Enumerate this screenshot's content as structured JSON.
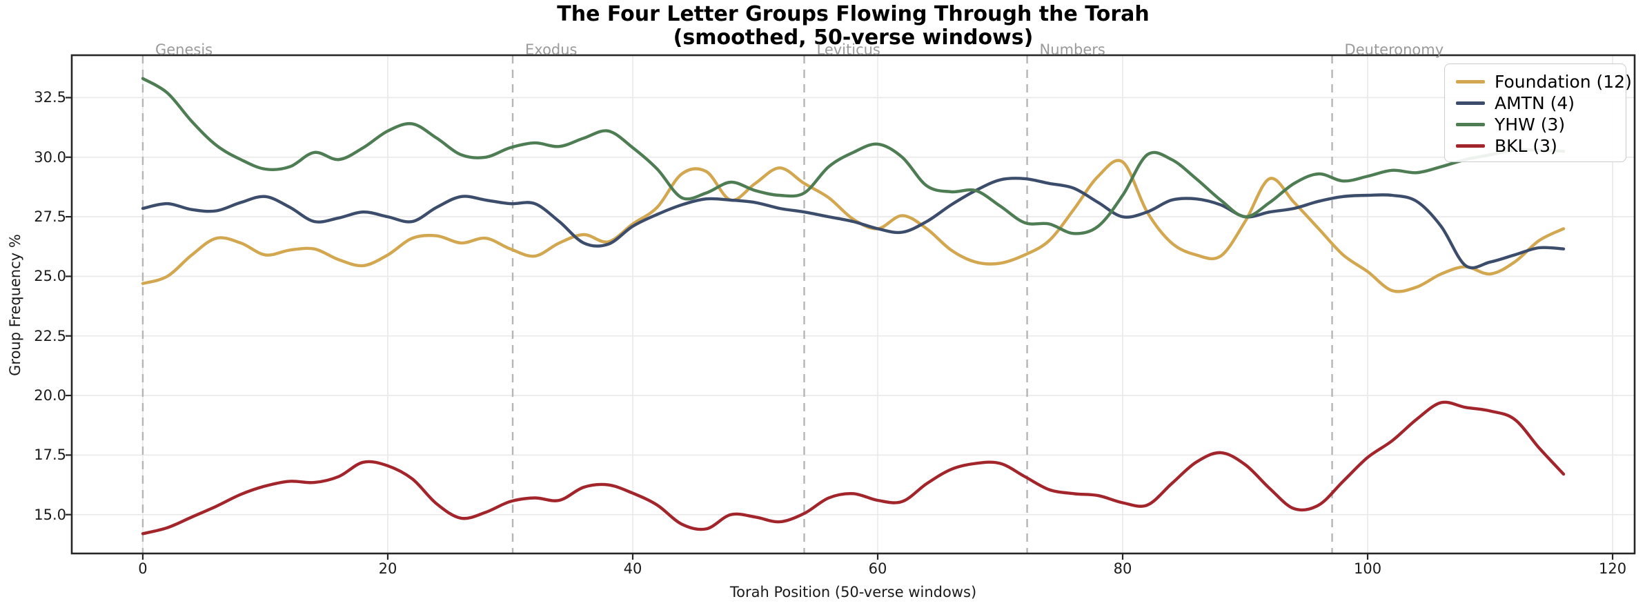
{
  "title": {
    "line1": "The Four Letter Groups Flowing Through the Torah",
    "line2": "(smoothed, 50-verse windows)"
  },
  "axes": {
    "x_label": "Torah Position (50-verse windows)",
    "y_label": "Group Frequency %",
    "x_tick_values": [
      0,
      20,
      40,
      60,
      80,
      100,
      120
    ],
    "x_tick_labels": [
      "0",
      "20",
      "40",
      "60",
      "80",
      "100",
      "120"
    ],
    "y_tick_values": [
      15.0,
      17.5,
      20.0,
      22.5,
      25.0,
      27.5,
      30.0,
      32.5
    ],
    "y_tick_labels": [
      "15.0",
      "17.5",
      "20.0",
      "22.5",
      "25.0",
      "27.5",
      "30.0",
      "32.5"
    ]
  },
  "books": [
    {
      "name": "Genesis",
      "x": 0
    },
    {
      "name": "Exodus",
      "x": 30.2
    },
    {
      "name": "Leviticus",
      "x": 54.0
    },
    {
      "name": "Numbers",
      "x": 72.2
    },
    {
      "name": "Deuteronomy",
      "x": 97.1
    }
  ],
  "legend": [
    {
      "label": "Foundation (12)",
      "color": "#D2A74F"
    },
    {
      "label": "AMTN (4)",
      "color": "#3C4D6C"
    },
    {
      "label": "YHW (3)",
      "color": "#4E7D54"
    },
    {
      "label": "BKL (3)",
      "color": "#A2252B"
    }
  ],
  "colors": {
    "grid": "#e9e9e9",
    "boundary_dash": "#b5b5b5",
    "spine": "#262626",
    "book_label": "#9a9a9a"
  },
  "chart_data": {
    "type": "line",
    "title": "The Four Letter Groups Flowing Through the Torah (smoothed, 50-verse windows)",
    "xlabel": "Torah Position (50-verse windows)",
    "ylabel": "Group Frequency %",
    "xlim": [
      -5.8,
      121.8
    ],
    "ylim": [
      13.37,
      34.28
    ],
    "grid": true,
    "legend_position": "upper right",
    "annotations": [
      "Genesis @0",
      "Exodus @30.2",
      "Leviticus @54.0",
      "Numbers @72.2",
      "Deuteronomy @97.1"
    ],
    "x": [
      0,
      2,
      4,
      6,
      8,
      10,
      12,
      14,
      16,
      18,
      20,
      22,
      24,
      26,
      28,
      30,
      32,
      34,
      36,
      38,
      40,
      42,
      44,
      46,
      48,
      50,
      52,
      54,
      56,
      58,
      60,
      62,
      64,
      66,
      68,
      70,
      72,
      74,
      76,
      78,
      80,
      82,
      84,
      86,
      88,
      90,
      92,
      94,
      96,
      98,
      100,
      102,
      104,
      106,
      108,
      110,
      112,
      114,
      116
    ],
    "series": [
      {
        "name": "Foundation (12)",
        "color": "#D2A74F",
        "values": [
          24.7,
          25.0,
          25.9,
          26.6,
          26.4,
          25.9,
          26.1,
          26.15,
          25.7,
          25.45,
          25.9,
          26.6,
          26.7,
          26.4,
          26.6,
          26.15,
          25.85,
          26.4,
          26.75,
          26.45,
          27.2,
          27.9,
          29.3,
          29.4,
          28.2,
          28.9,
          29.55,
          28.9,
          28.3,
          27.4,
          27.0,
          27.55,
          27.0,
          26.1,
          25.6,
          25.55,
          25.9,
          26.5,
          27.8,
          29.2,
          29.8,
          27.7,
          26.4,
          25.9,
          25.85,
          27.3,
          29.1,
          28.1,
          27.0,
          25.9,
          25.2,
          24.4,
          24.55,
          25.1,
          25.4,
          25.1,
          25.6,
          26.5,
          27.0
        ]
      },
      {
        "name": "AMTN (4)",
        "color": "#3C4D6C",
        "values": [
          27.85,
          28.05,
          27.8,
          27.75,
          28.1,
          28.35,
          27.9,
          27.3,
          27.45,
          27.7,
          27.5,
          27.3,
          27.9,
          28.35,
          28.2,
          28.05,
          28.05,
          27.3,
          26.4,
          26.35,
          27.1,
          27.6,
          28.0,
          28.25,
          28.2,
          28.1,
          27.85,
          27.7,
          27.5,
          27.3,
          27.0,
          26.85,
          27.3,
          28.0,
          28.6,
          29.05,
          29.1,
          28.9,
          28.7,
          28.1,
          27.5,
          27.7,
          28.2,
          28.25,
          28.0,
          27.5,
          27.7,
          27.85,
          28.15,
          28.35,
          28.4,
          28.4,
          28.15,
          27.1,
          25.45,
          25.6,
          25.9,
          26.2,
          26.15
        ]
      },
      {
        "name": "YHW (3)",
        "color": "#4E7D54",
        "values": [
          33.3,
          32.7,
          31.5,
          30.5,
          29.9,
          29.5,
          29.6,
          30.2,
          29.9,
          30.4,
          31.1,
          31.4,
          30.8,
          30.1,
          30.0,
          30.4,
          30.6,
          30.45,
          30.8,
          31.1,
          30.4,
          29.5,
          28.3,
          28.5,
          28.95,
          28.6,
          28.4,
          28.5,
          29.6,
          30.2,
          30.55,
          30.0,
          28.8,
          28.55,
          28.6,
          27.95,
          27.25,
          27.2,
          26.8,
          27.1,
          28.4,
          30.1,
          29.9,
          29.1,
          28.2,
          27.5,
          28.1,
          28.9,
          29.3,
          29.0,
          29.2,
          29.45,
          29.35,
          29.6,
          29.9,
          30.1,
          30.3,
          30.3,
          30.25
        ]
      },
      {
        "name": "BKL (3)",
        "color": "#A2252B",
        "values": [
          14.2,
          14.45,
          14.9,
          15.35,
          15.85,
          16.2,
          16.4,
          16.35,
          16.6,
          17.2,
          17.05,
          16.5,
          15.45,
          14.85,
          15.1,
          15.55,
          15.7,
          15.6,
          16.15,
          16.25,
          15.9,
          15.4,
          14.6,
          14.4,
          15.0,
          14.9,
          14.7,
          15.05,
          15.7,
          15.88,
          15.6,
          15.55,
          16.3,
          16.9,
          17.15,
          17.15,
          16.6,
          16.05,
          15.88,
          15.8,
          15.5,
          15.4,
          16.3,
          17.2,
          17.6,
          17.1,
          16.1,
          15.25,
          15.4,
          16.4,
          17.4,
          18.1,
          19.0,
          19.7,
          19.5,
          19.35,
          19.0,
          17.8,
          16.7
        ]
      }
    ]
  }
}
